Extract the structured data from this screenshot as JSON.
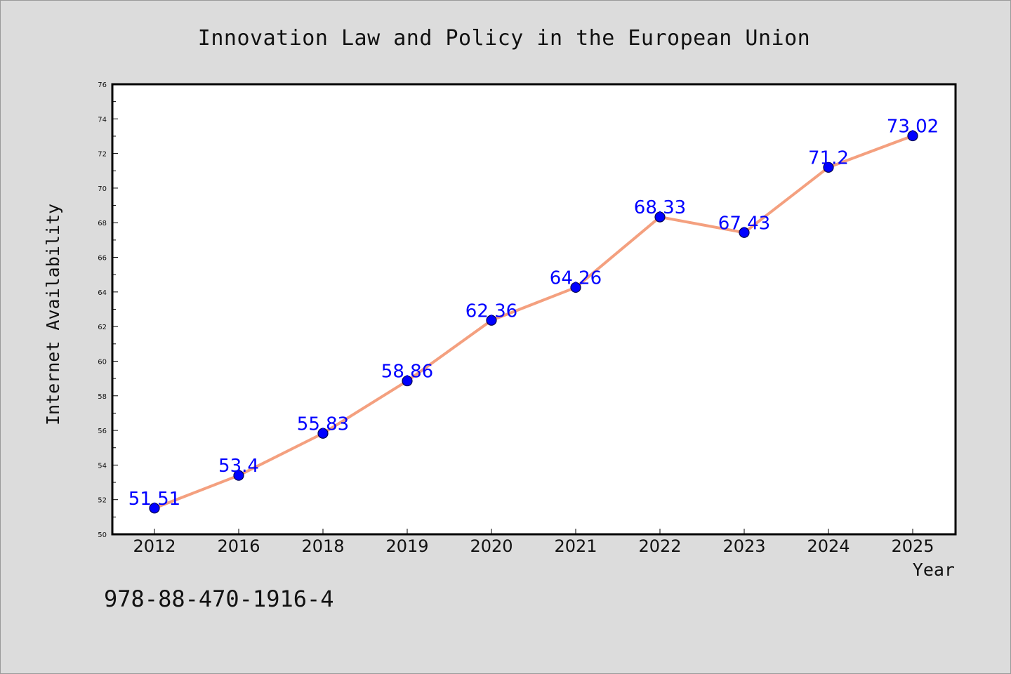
{
  "chart_data": {
    "type": "line",
    "title": "Innovation Law and Policy in the European Union",
    "xlabel": "Year",
    "ylabel": "Internet Availability",
    "categories": [
      "2012",
      "2016",
      "2018",
      "2019",
      "2020",
      "2021",
      "2022",
      "2023",
      "2024",
      "2025"
    ],
    "series": [
      {
        "values": [
          51.51,
          53.4,
          55.83,
          58.86,
          62.36,
          64.26,
          68.33,
          67.43,
          71.2,
          73.02
        ]
      }
    ],
    "data_labels": [
      "51.51",
      "53.4",
      "55.83",
      "58.86",
      "62.36",
      "64.26",
      "68.33",
      "67.43",
      "71.2",
      "73.02"
    ],
    "ylim": [
      50,
      76
    ],
    "yticks": [
      50,
      52,
      54,
      56,
      58,
      60,
      62,
      64,
      66,
      68,
      70,
      72,
      74,
      76
    ],
    "grid": false,
    "legend": "none",
    "colors": {
      "line": "#f4a07f",
      "marker": "#0000ff",
      "marker_edge": "#00004d",
      "data_label": "#0000ff",
      "background": "#dcdcdc",
      "plot_background": "#ffffff"
    }
  },
  "footer": {
    "code": "978-88-470-1916-4"
  }
}
